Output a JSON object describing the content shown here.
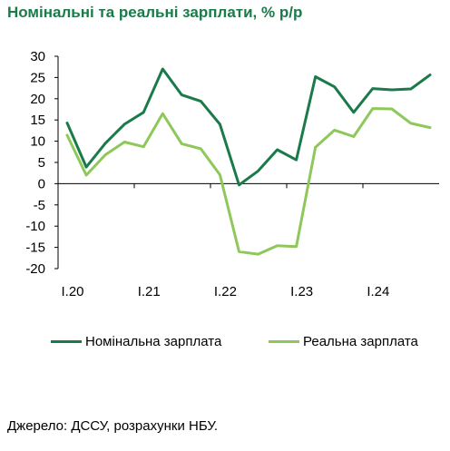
{
  "title": "Номінальні та реальні зарплати, % р/р",
  "source": "Джерело: ДССУ, розрахунки НБУ.",
  "chart_data": {
    "type": "line",
    "x": [
      "I.20",
      "II.20",
      "III.20",
      "IV.20",
      "I.21",
      "II.21",
      "III.21",
      "IV.21",
      "I.22",
      "II.22",
      "III.22",
      "IV.22",
      "I.23",
      "II.23",
      "III.23",
      "IV.23",
      "I.24",
      "II.24",
      "III.24",
      "IV.24"
    ],
    "x_tick_labels": [
      "I.20",
      "I.21",
      "I.22",
      "I.23",
      "I.24"
    ],
    "y_ticks": [
      30,
      25,
      20,
      15,
      10,
      5,
      0,
      -5,
      -10,
      -15,
      -20
    ],
    "ylim": [
      -20,
      30
    ],
    "grid": false,
    "legend_position": "bottom",
    "series": [
      {
        "name": "Номінальна зарплата",
        "color": "#1a7a4a",
        "values": [
          14.3,
          3.9,
          9.5,
          14.0,
          16.8,
          27.0,
          20.9,
          19.4,
          14.0,
          -0.3,
          3.0,
          8.0,
          5.6,
          25.2,
          22.8,
          16.8,
          22.4,
          22.1,
          22.3,
          25.6
        ]
      },
      {
        "name": "Реальна зарплата",
        "color": "#8ec85a",
        "values": [
          11.4,
          2.0,
          6.8,
          9.8,
          8.7,
          16.5,
          9.4,
          8.2,
          2.1,
          -16.0,
          -16.6,
          -14.6,
          -14.8,
          8.6,
          12.6,
          11.1,
          17.7,
          17.6,
          14.2,
          13.2
        ]
      }
    ]
  }
}
